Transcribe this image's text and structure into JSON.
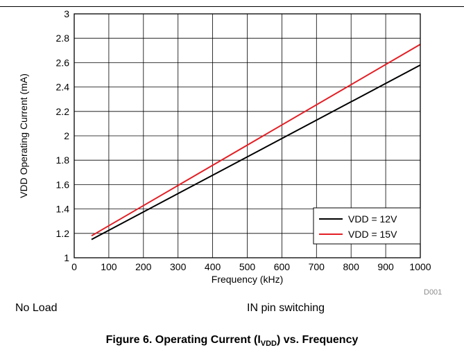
{
  "chart_data": {
    "type": "line",
    "xlabel": "Frequency (kHz)",
    "ylabel": "VDD Operating Current (mA)",
    "xlim": [
      0,
      1000
    ],
    "ylim": [
      1,
      3
    ],
    "x_ticks": [
      "0",
      "100",
      "200",
      "300",
      "400",
      "500",
      "600",
      "700",
      "800",
      "900",
      "1000"
    ],
    "y_ticks": [
      "1",
      "1.2",
      "1.4",
      "1.6",
      "1.8",
      "2",
      "2.2",
      "2.4",
      "2.6",
      "2.8",
      "3"
    ],
    "grid": true,
    "legend_position": "bottom-right",
    "series": [
      {
        "name": "VDD = 12V",
        "color": "#000000",
        "x": [
          50,
          1000
        ],
        "y": [
          1.15,
          2.58
        ]
      },
      {
        "name": "VDD = 15V",
        "color": "#e31e24",
        "x": [
          50,
          1000
        ],
        "y": [
          1.18,
          2.75
        ]
      }
    ]
  },
  "figure_code": "D001",
  "note_left": "No Load",
  "note_right": "IN pin switching",
  "caption": {
    "prefix": "Figure 6. Operating Current (I",
    "sub": "VDD",
    "suffix": ") vs. Frequency"
  }
}
